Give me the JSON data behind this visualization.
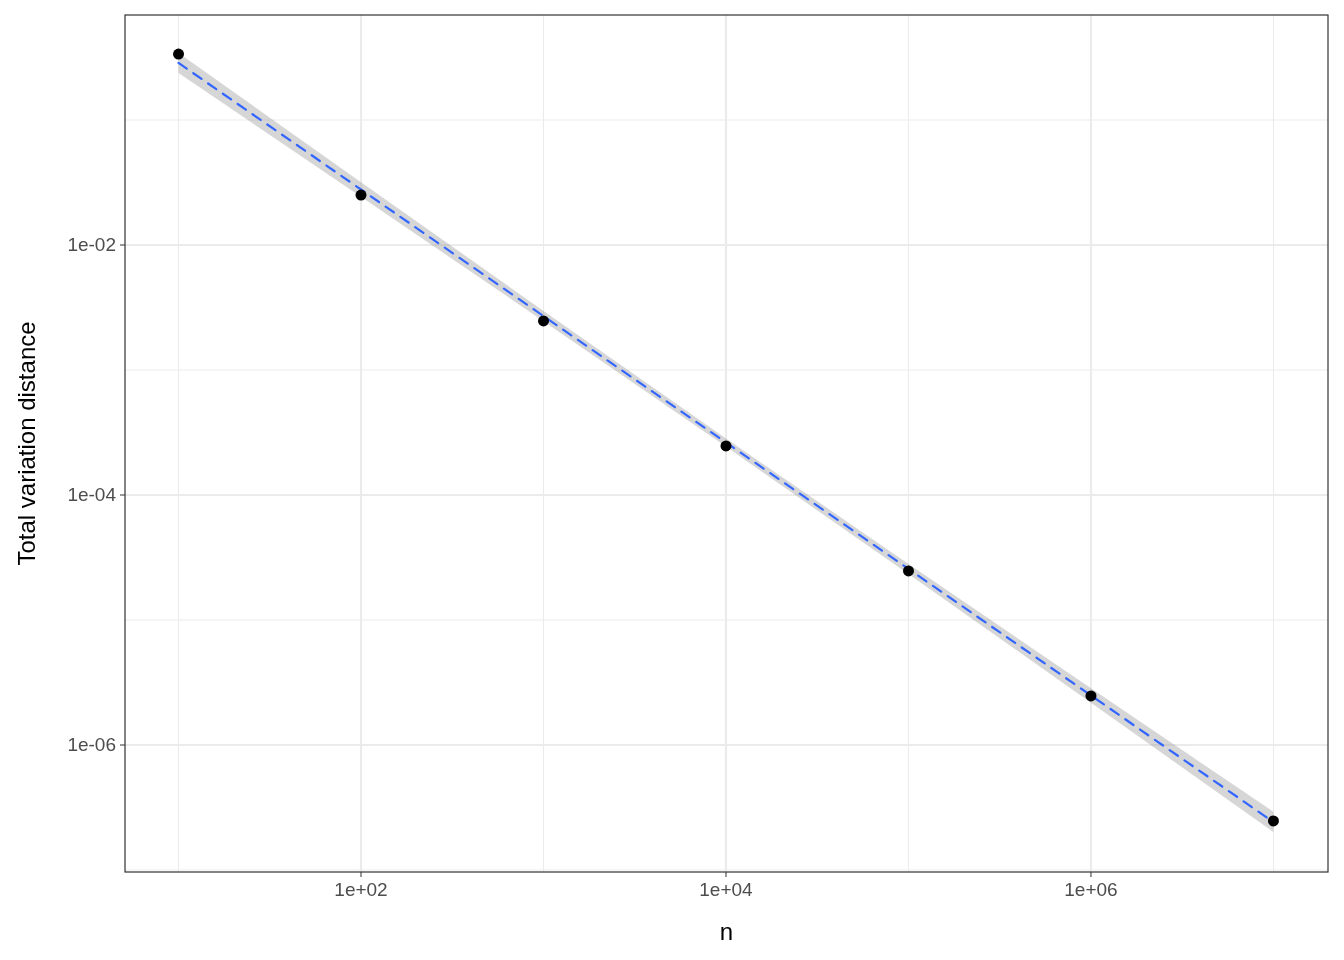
{
  "chart_data": {
    "type": "scatter",
    "xlabel": "n",
    "ylabel": "Total variation distance",
    "log": "xy",
    "grid": true,
    "xlim": [
      5.09,
      19900000.0
    ],
    "ylim": [
      9.64e-08,
      0.692
    ],
    "xticks": [
      {
        "value": 10,
        "label": null
      },
      {
        "value": 100,
        "label": "1e+02"
      },
      {
        "value": 1000,
        "label": null
      },
      {
        "value": 10000,
        "label": "1e+04"
      },
      {
        "value": 100000,
        "label": null
      },
      {
        "value": 1000000,
        "label": "1e+06"
      },
      {
        "value": 10000000,
        "label": null
      }
    ],
    "yticks": [
      {
        "value": 1e-07,
        "label": null
      },
      {
        "value": 1e-06,
        "label": "1e-06"
      },
      {
        "value": 1e-05,
        "label": null
      },
      {
        "value": 0.0001,
        "label": "1e-04"
      },
      {
        "value": 0.001,
        "label": null
      },
      {
        "value": 0.01,
        "label": "1e-02"
      },
      {
        "value": 0.1,
        "label": null
      }
    ],
    "series": [
      {
        "type": "line",
        "color": "#3366ff",
        "line_style": "dashed",
        "marker": "none",
        "x": [
          10,
          100,
          1000,
          10000,
          100000,
          1000000,
          10000000
        ],
        "values": [
          0.286,
          0.0278,
          0.0027,
          0.000263,
          2.56e-05,
          2.49e-06,
          2.42e-07
        ],
        "lower": [
          0.238,
          0.0243,
          0.00246,
          0.000244,
          2.33e-05,
          2.18e-06,
          2.01e-07
        ],
        "upper": [
          0.344,
          0.0318,
          0.00297,
          0.000283,
          2.81e-05,
          2.84e-06,
          2.92e-07
        ]
      },
      {
        "color": "#000000",
        "marker": "circle",
        "x": [
          10,
          100,
          1000,
          10000,
          100000,
          1000000,
          10000000
        ],
        "values": [
          0.337,
          0.0251,
          0.00247,
          0.000247,
          2.47e-05,
          2.47e-06,
          2.47e-07
        ]
      }
    ]
  }
}
